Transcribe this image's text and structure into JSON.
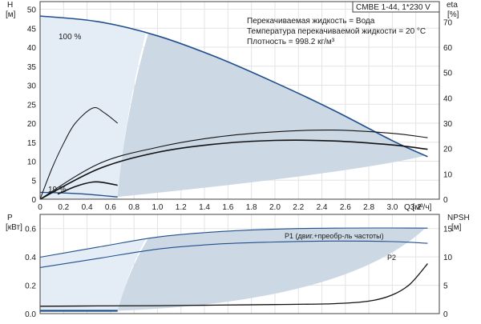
{
  "header": {
    "model": "CMBE 1-44, 1*230 V",
    "info": [
      "Перекачиваемая жидкость = Вода",
      "Температура перекачиваемой жидкости = 20 °C",
      "Плотность = 998.2 кг/м³"
    ]
  },
  "colors": {
    "frame": "#404040",
    "region": "#c9d6e3",
    "region_light": "#e4edf6",
    "curve_max": "#1f4e8c",
    "curve": "#111111"
  },
  "chart_data": [
    {
      "type": "line",
      "name": "head-efficiency",
      "xlabel": "Q [м³/ч]",
      "ylabel": "H [м]",
      "y2label": "eta [%]",
      "xlim": [
        0,
        3.4
      ],
      "ylim": [
        0,
        52
      ],
      "y2lim": [
        0,
        78
      ],
      "xticks": [
        "0",
        "0.2",
        "0.4",
        "0.6",
        "0.8",
        "1.0",
        "1.2",
        "1.4",
        "1.6",
        "1.8",
        "2.0",
        "2.2",
        "2.4",
        "2.6",
        "2.8",
        "3.0",
        "3.2"
      ],
      "yticks": [
        "0",
        "5",
        "10",
        "15",
        "20",
        "25",
        "30",
        "35",
        "40",
        "45",
        "50"
      ],
      "y2ticks": [
        "0",
        "10",
        "20",
        "30",
        "40",
        "50",
        "60",
        "70"
      ],
      "grid": true,
      "annotations": [
        "100 %",
        "19 %"
      ],
      "series": [
        {
          "role": "max",
          "label": "100 %",
          "x": [
            0,
            0.5,
            1.0,
            1.5,
            2.0,
            2.5,
            3.0,
            3.3
          ],
          "y": [
            48.2,
            46.7,
            43.0,
            37.4,
            30.7,
            23.4,
            15.4,
            11.2
          ]
        },
        {
          "role": "min",
          "label": "19 %",
          "x": [
            0,
            0.2,
            0.4,
            0.66
          ],
          "y": [
            1.8,
            1.65,
            1.3,
            0.6
          ]
        },
        {
          "role": "eta",
          "x": [
            0,
            0.1,
            0.2,
            0.3,
            0.45,
            0.55,
            0.66
          ],
          "y": [
            0,
            12,
            22,
            30,
            36,
            34,
            30
          ],
          "axis": "y2"
        },
        {
          "role": "eta-min",
          "x": [
            0.15,
            0.3,
            0.45,
            0.55,
            0.66
          ],
          "y": [
            2,
            5,
            6.8,
            6.5,
            5.5
          ],
          "axis": "y2"
        },
        {
          "role": "eta-max",
          "x": [
            0,
            0.5,
            1.0,
            1.5,
            2.0,
            2.5,
            3.0,
            3.3
          ],
          "y": [
            0,
            14,
            20.5,
            24.5,
            26.6,
            27.3,
            26.0,
            24.3
          ],
          "axis": "y2"
        },
        {
          "role": "eta-max-inner",
          "x": [
            0,
            0.5,
            1.0,
            1.5,
            2.0,
            2.5,
            3.0,
            3.3
          ],
          "y": [
            0,
            12,
            18.5,
            21.8,
            23.2,
            23.0,
            21.4,
            19.7
          ],
          "axis": "y2"
        }
      ]
    },
    {
      "type": "line",
      "name": "power-npsh",
      "xlabel": "Q [м³/ч]",
      "ylabel": "P [кВт]",
      "y2label": "NPSH [м]",
      "xlim": [
        0,
        3.4
      ],
      "ylim": [
        0,
        0.7
      ],
      "y2lim": [
        0,
        17.5
      ],
      "yticks": [
        "0.0",
        "0.2",
        "0.4",
        "0.6"
      ],
      "y2ticks": [
        "0",
        "5",
        "10",
        "15"
      ],
      "grid": true,
      "annotations": [
        "P1 (двиг.+преобр-ль частоты)",
        "P2"
      ],
      "series": [
        {
          "name": "P1 (двиг.+преобр-ль частоты)",
          "x": [
            0,
            0.5,
            1.0,
            1.5,
            2.0,
            2.5,
            3.0,
            3.3
          ],
          "y": [
            0.398,
            0.47,
            0.54,
            0.577,
            0.596,
            0.603,
            0.604,
            0.603
          ]
        },
        {
          "name": "P2",
          "x": [
            0,
            0.5,
            1.0,
            1.5,
            2.0,
            2.5,
            3.0,
            3.3
          ],
          "y": [
            0.325,
            0.39,
            0.455,
            0.49,
            0.505,
            0.512,
            0.508,
            0.496
          ]
        },
        {
          "role": "p-min",
          "x": [
            0,
            0.66
          ],
          "y": [
            0.02,
            0.02
          ]
        },
        {
          "role": "npsh",
          "axis": "y2",
          "x": [
            0,
            0.5,
            1.0,
            1.5,
            2.0,
            2.5,
            2.8,
            3.0,
            3.15,
            3.3
          ],
          "y": [
            1.3,
            1.35,
            1.4,
            1.5,
            1.6,
            1.75,
            2.2,
            3.3,
            5.2,
            8.8
          ]
        }
      ]
    }
  ]
}
